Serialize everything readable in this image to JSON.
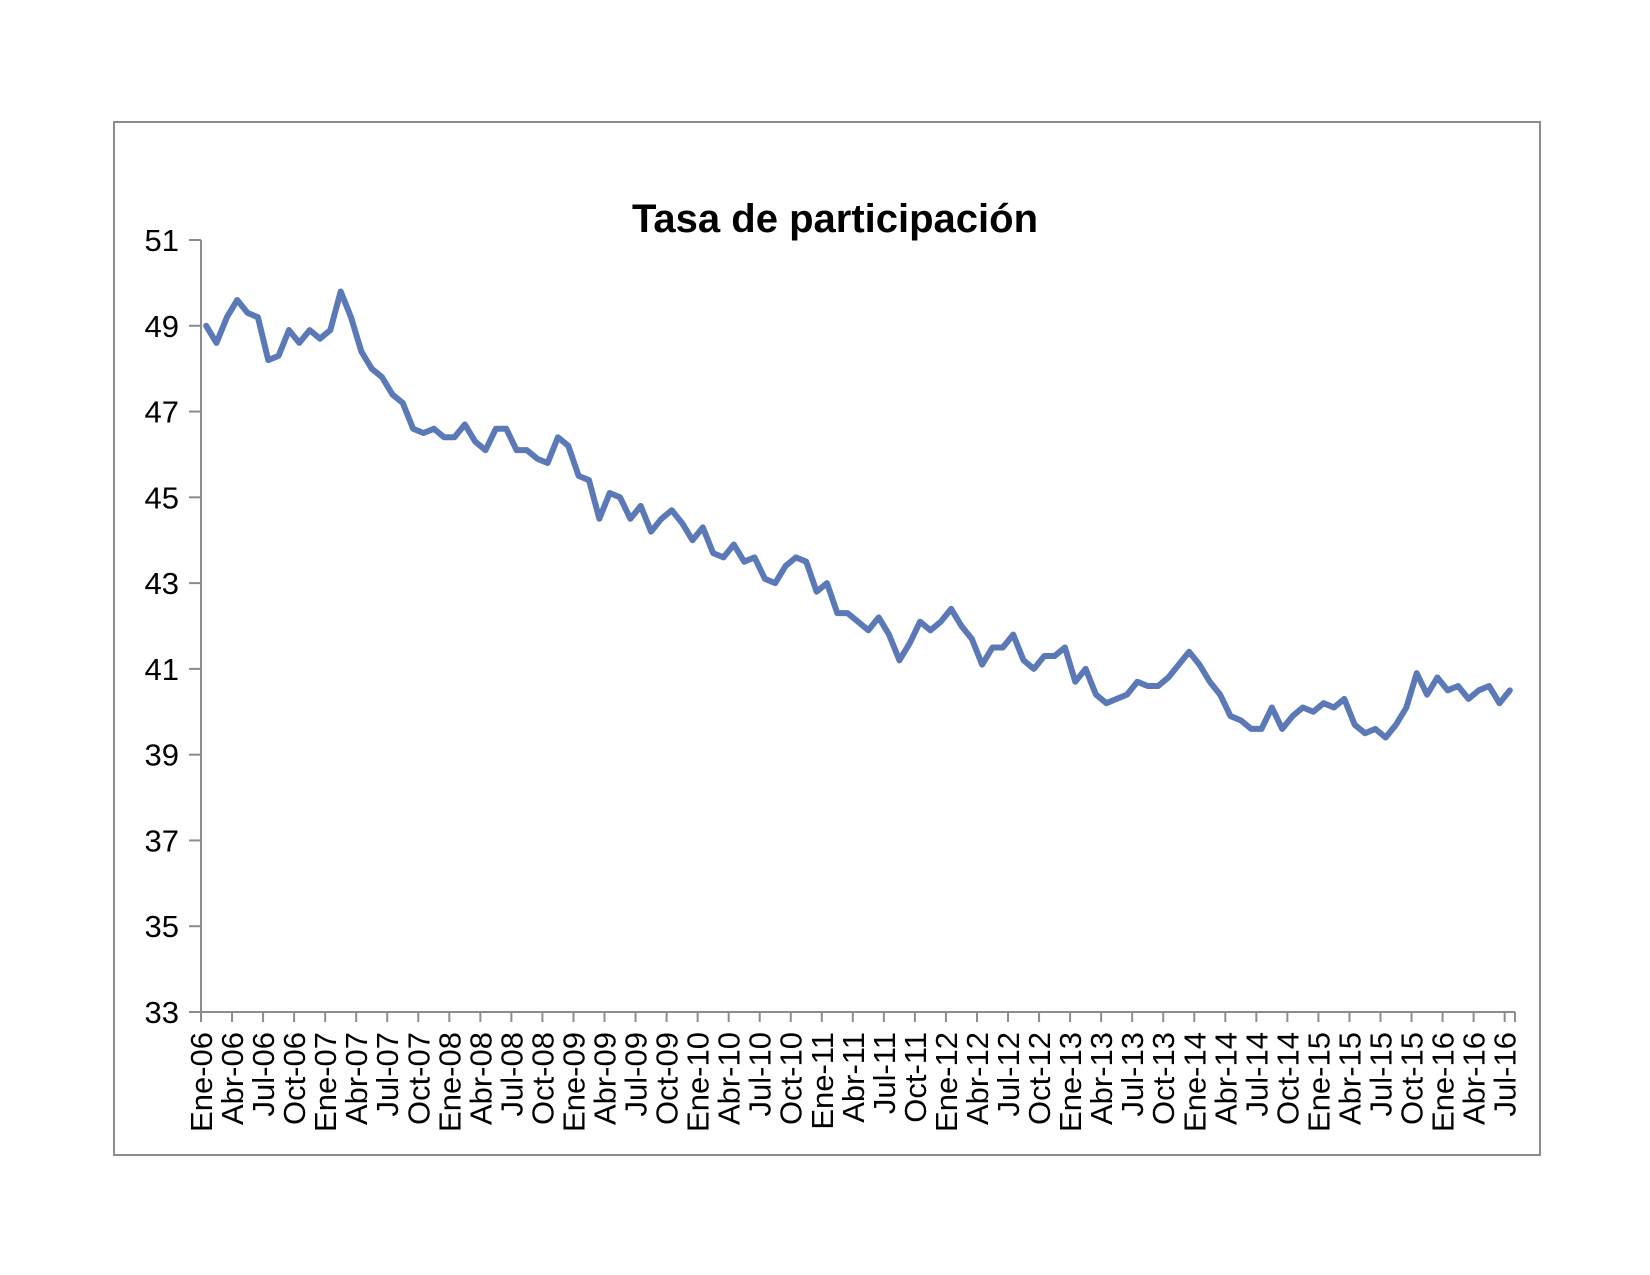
{
  "chart_data": {
    "type": "line",
    "title": "Tasa de participación",
    "xlabel": "",
    "ylabel": "",
    "ylim": [
      33,
      51
    ],
    "yticks": [
      33,
      35,
      37,
      39,
      41,
      43,
      45,
      47,
      49,
      51
    ],
    "xtick_labels": [
      "Ene-06",
      "Abr-06",
      "Jul-06",
      "Oct-06",
      "Ene-07",
      "Abr-07",
      "Jul-07",
      "Oct-07",
      "Ene-08",
      "Abr-08",
      "Jul-08",
      "Oct-08",
      "Ene-09",
      "Abr-09",
      "Jul-09",
      "Oct-09",
      "Ene-10",
      "Abr-10",
      "Jul-10",
      "Oct-10",
      "Ene-11",
      "Abr-11",
      "Jul-11",
      "Oct-11",
      "Ene-12",
      "Abr-12",
      "Jul-12",
      "Oct-12",
      "Ene-13",
      "Abr-13",
      "Jul-13",
      "Oct-13",
      "Ene-14",
      "Abr-14",
      "Jul-14",
      "Oct-14",
      "Ene-15",
      "Abr-15",
      "Jul-15",
      "Oct-15",
      "Ene-16",
      "Abr-16",
      "Jul-16"
    ],
    "grid": false,
    "legend": "none",
    "line_color": "#5b79b6",
    "series": [
      {
        "values": [
          49.0,
          48.6,
          49.2,
          49.6,
          49.3,
          49.2,
          48.2,
          48.3,
          48.9,
          48.6,
          48.9,
          48.7,
          48.9,
          49.8,
          49.2,
          48.4,
          48.0,
          47.8,
          47.4,
          47.2,
          46.6,
          46.5,
          46.6,
          46.4,
          46.4,
          46.7,
          46.3,
          46.1,
          46.6,
          46.6,
          46.1,
          46.1,
          45.9,
          45.8,
          46.4,
          46.2,
          45.5,
          45.4,
          44.5,
          45.1,
          45.0,
          44.5,
          44.8,
          44.2,
          44.5,
          44.7,
          44.4,
          44.0,
          44.3,
          43.7,
          43.6,
          43.9,
          43.5,
          43.6,
          43.1,
          43.0,
          43.4,
          43.6,
          43.5,
          42.8,
          43.0,
          42.3,
          42.3,
          42.1,
          41.9,
          42.2,
          41.8,
          41.2,
          41.6,
          42.1,
          41.9,
          42.1,
          42.4,
          42.0,
          41.7,
          41.1,
          41.5,
          41.5,
          41.8,
          41.2,
          41.0,
          41.3,
          41.3,
          41.5,
          40.7,
          41.0,
          40.4,
          40.2,
          40.3,
          40.4,
          40.7,
          40.6,
          40.6,
          40.8,
          41.1,
          41.4,
          41.1,
          40.7,
          40.4,
          39.9,
          39.8,
          39.6,
          39.6,
          40.1,
          39.6,
          39.9,
          40.1,
          40.0,
          40.2,
          40.1,
          40.3,
          39.7,
          39.5,
          39.6,
          39.4,
          39.7,
          40.1,
          40.9,
          40.4,
          40.8,
          40.5,
          40.6,
          40.3,
          40.5,
          40.6,
          40.2,
          40.5
        ]
      }
    ]
  }
}
